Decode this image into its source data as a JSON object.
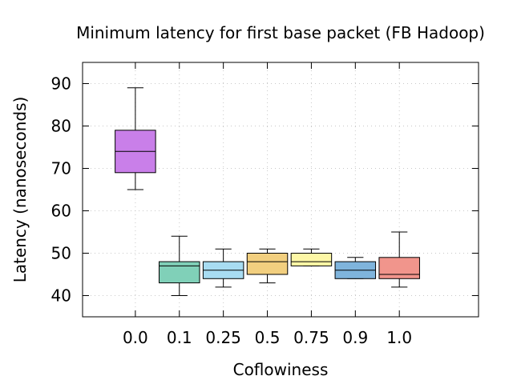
{
  "chart_data": {
    "type": "boxplot",
    "title": "Minimum latency for first base packet (FB Hadoop)",
    "xlabel": "Coflowiness",
    "ylabel": "Latency (nanoseconds)",
    "categories": [
      "0.0",
      "0.1",
      "0.25",
      "0.5",
      "0.75",
      "0.9",
      "1.0"
    ],
    "ylim": [
      35,
      95
    ],
    "yticks": [
      40,
      50,
      60,
      70,
      80,
      90
    ],
    "grid": true,
    "boxes": [
      {
        "category": "0.0",
        "min": 65,
        "q1": 69,
        "median": 74,
        "q3": 79,
        "max": 89,
        "color": "#c97fe9"
      },
      {
        "category": "0.1",
        "min": 40,
        "q1": 43,
        "median": 47,
        "q3": 48,
        "max": 54,
        "color": "#80d0b8"
      },
      {
        "category": "0.25",
        "min": 42,
        "q1": 44,
        "median": 46,
        "q3": 48,
        "max": 51,
        "color": "#a8dcf2"
      },
      {
        "category": "0.5",
        "min": 43,
        "q1": 45,
        "median": 48,
        "q3": 50,
        "max": 51,
        "color": "#f2cf7f"
      },
      {
        "category": "0.75",
        "min": 47,
        "q1": 47,
        "median": 48,
        "q3": 50,
        "max": 51,
        "color": "#fdf7a6"
      },
      {
        "category": "0.9",
        "min": 44,
        "q1": 44,
        "median": 46,
        "q3": 48,
        "max": 49,
        "color": "#7fb4dc"
      },
      {
        "category": "1.0",
        "min": 42,
        "q1": 44,
        "median": 45,
        "q3": 49,
        "max": 55,
        "color": "#f1958c"
      }
    ]
  }
}
